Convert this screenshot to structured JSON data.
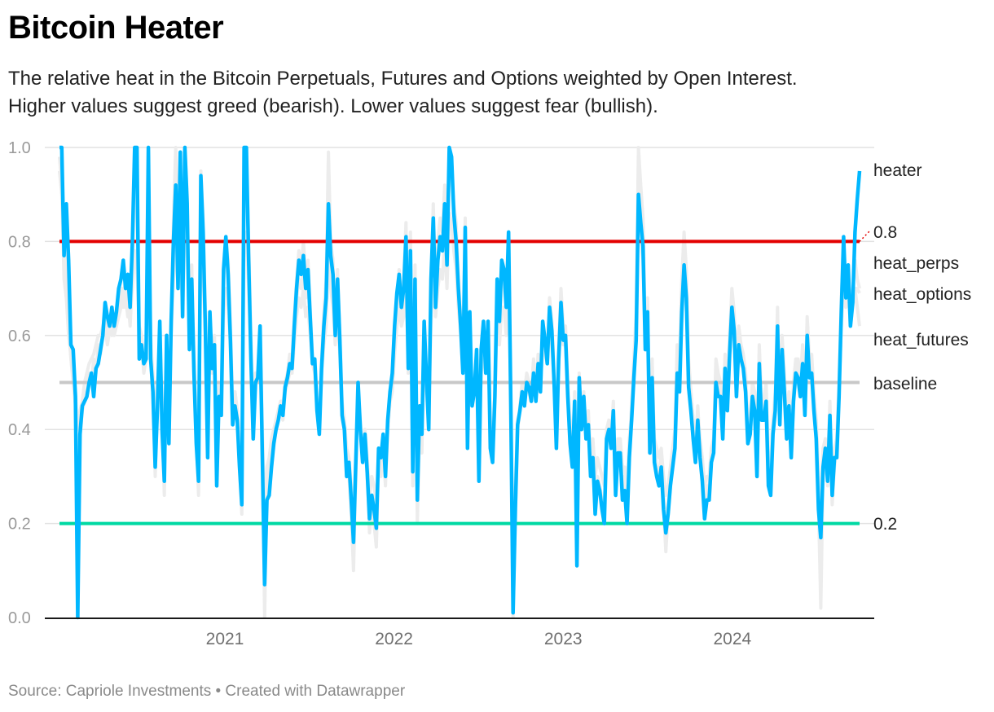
{
  "header": {
    "title": "Bitcoin Heater",
    "subtitle_line1": "The relative heat in the Bitcoin Perpetuals, Futures and Options weighted by Open Interest.",
    "subtitle_line2": "Higher values suggest greed (bearish). Lower values suggest fear (bullish)."
  },
  "footer": {
    "source": "Source: Capriole Investments • Created with Datawrapper"
  },
  "colors": {
    "heater": "#00b7ff",
    "threshold_high": "#e30000",
    "threshold_low": "#00d9a3",
    "baseline": "#c8c8c8",
    "components": "#ececec",
    "grid": "#e2e2e2"
  },
  "chart_data": {
    "type": "line",
    "title": "Bitcoin Heater",
    "xlabel": "",
    "ylabel": "",
    "xlim": [
      2020.08,
      2024.81
    ],
    "ylim": [
      0,
      1
    ],
    "grid": true,
    "y_ticks": [
      "0.0",
      "0.2",
      "0.4",
      "0.6",
      "0.8",
      "1.0"
    ],
    "y_tick_values": [
      0,
      0.2,
      0.4,
      0.6,
      0.8,
      1.0
    ],
    "x_ticks": [
      "2021",
      "2022",
      "2023",
      "2024"
    ],
    "x_tick_values": [
      2021,
      2022,
      2023,
      2024
    ],
    "legend": "right-inline",
    "reference_lines": [
      {
        "name": "0.8",
        "label": "0.8",
        "value": 0.8
      },
      {
        "name": "baseline",
        "label": "baseline",
        "value": 0.5
      },
      {
        "name": "0.2",
        "label": "0.2",
        "value": 0.2
      }
    ],
    "series_labels": {
      "heater": "heater",
      "heat_perps": "heat_perps",
      "heat_options": "heat_options",
      "heat_futures": "heat_futures"
    },
    "x_start": 2020.08,
    "x_step": 0.02,
    "heater": [
      1.0,
      1.0,
      0.77,
      0.88,
      0.76,
      0.58,
      0.57,
      0.47,
      0.0,
      0.39,
      0.45,
      0.46,
      0.47,
      0.5,
      0.52,
      0.47,
      0.53,
      0.54,
      0.57,
      0.6,
      0.67,
      0.64,
      0.62,
      0.66,
      0.62,
      0.65,
      0.7,
      0.72,
      0.76,
      0.7,
      0.73,
      0.66,
      0.8,
      1.0,
      1.0,
      0.55,
      0.58,
      0.54,
      0.55,
      1.0,
      0.55,
      0.48,
      0.32,
      0.45,
      0.63,
      0.4,
      0.29,
      0.6,
      0.37,
      0.63,
      0.8,
      0.92,
      0.7,
      0.99,
      0.64,
      1.0,
      0.88,
      0.57,
      0.72,
      0.52,
      0.37,
      0.29,
      0.94,
      0.82,
      0.61,
      0.34,
      0.65,
      0.53,
      0.58,
      0.28,
      0.47,
      0.43,
      0.74,
      0.81,
      0.73,
      0.59,
      0.41,
      0.45,
      0.42,
      0.32,
      0.24,
      1.0,
      1.0,
      0.76,
      0.55,
      0.38,
      0.5,
      0.51,
      0.62,
      0.34,
      0.07,
      0.25,
      0.26,
      0.32,
      0.37,
      0.4,
      0.42,
      0.45,
      0.43,
      0.49,
      0.51,
      0.54,
      0.53,
      0.62,
      0.7,
      0.76,
      0.73,
      0.77,
      0.7,
      0.74,
      0.64,
      0.54,
      0.55,
      0.44,
      0.39,
      0.53,
      0.62,
      0.68,
      0.88,
      0.77,
      0.73,
      0.6,
      0.72,
      0.59,
      0.43,
      0.4,
      0.3,
      0.33,
      0.25,
      0.16,
      0.33,
      0.5,
      0.4,
      0.33,
      0.39,
      0.31,
      0.21,
      0.26,
      0.23,
      0.19,
      0.36,
      0.34,
      0.39,
      0.3,
      0.42,
      0.48,
      0.52,
      0.62,
      0.69,
      0.73,
      0.66,
      0.7,
      0.81,
      0.53,
      0.78,
      0.31,
      0.72,
      0.25,
      0.45,
      0.39,
      0.63,
      0.51,
      0.4,
      0.72,
      0.85,
      0.66,
      0.76,
      0.81,
      0.78,
      0.88,
      0.75,
      1.0,
      0.98,
      0.86,
      0.8,
      0.7,
      0.62,
      0.52,
      0.83,
      0.36,
      0.65,
      0.45,
      0.48,
      0.57,
      0.29,
      0.57,
      0.63,
      0.52,
      0.63,
      0.36,
      0.33,
      0.47,
      0.72,
      0.63,
      0.76,
      0.74,
      0.66,
      0.82,
      0.46,
      0.01,
      0.23,
      0.41,
      0.44,
      0.48,
      0.45,
      0.5,
      0.49,
      0.46,
      0.52,
      0.46,
      0.54,
      0.48,
      0.63,
      0.59,
      0.54,
      0.66,
      0.61,
      0.5,
      0.36,
      0.55,
      0.67,
      0.59,
      0.6,
      0.47,
      0.37,
      0.32,
      0.46,
      0.11,
      0.51,
      0.4,
      0.47,
      0.38,
      0.41,
      0.3,
      0.34,
      0.22,
      0.29,
      0.27,
      0.23,
      0.2,
      0.38,
      0.4,
      0.36,
      0.44,
      0.26,
      0.35,
      0.35,
      0.25,
      0.27,
      0.2,
      0.34,
      0.42,
      0.51,
      0.59,
      0.9,
      0.84,
      0.79,
      0.57,
      0.65,
      0.35,
      0.51,
      0.33,
      0.3,
      0.28,
      0.32,
      0.23,
      0.18,
      0.22,
      0.28,
      0.32,
      0.36,
      0.52,
      0.48,
      0.65,
      0.75,
      0.68,
      0.49,
      0.44,
      0.38,
      0.33,
      0.42,
      0.34,
      0.29,
      0.21,
      0.25,
      0.25,
      0.33,
      0.35,
      0.5,
      0.47,
      0.47,
      0.38,
      0.53,
      0.44,
      0.56,
      0.66,
      0.61,
      0.47,
      0.58,
      0.55,
      0.53,
      0.48,
      0.37,
      0.39,
      0.47,
      0.44,
      0.3,
      0.54,
      0.42,
      0.42,
      0.46,
      0.28,
      0.26,
      0.39,
      0.44,
      0.62,
      0.41,
      0.57,
      0.48,
      0.38,
      0.45,
      0.34,
      0.46,
      0.52,
      0.51,
      0.47,
      0.54,
      0.43,
      0.6,
      0.51,
      0.52,
      0.44,
      0.38,
      0.23,
      0.17,
      0.32,
      0.36,
      0.29,
      0.43,
      0.26,
      0.34,
      0.34,
      0.47,
      0.65,
      0.81,
      0.68,
      0.75,
      0.62,
      0.67,
      0.82,
      0.89,
      0.95
    ],
    "heat_perps": [
      0.98,
      0.95,
      0.8,
      0.72,
      0.62,
      0.55,
      0.5,
      0.45,
      0.3,
      0.4,
      0.44,
      0.48,
      0.47,
      0.52,
      0.5,
      0.55,
      0.52,
      0.58,
      0.56,
      0.6,
      0.62,
      0.58,
      0.61,
      0.6,
      0.64,
      0.62,
      0.66,
      0.7,
      0.68,
      0.72,
      0.64,
      0.7,
      0.78,
      0.9,
      0.85,
      0.6,
      0.58,
      0.52,
      0.55,
      0.88,
      0.6,
      0.5,
      0.38,
      0.48,
      0.6,
      0.45,
      0.35,
      0.58,
      0.42,
      0.62,
      0.85,
      1.0,
      0.78,
      0.95,
      0.68,
      1.0,
      0.9,
      0.62,
      0.75,
      0.55,
      0.42,
      0.3,
      0.95,
      0.85,
      0.65,
      0.4,
      0.62,
      0.55,
      0.6,
      0.32,
      0.5,
      0.46,
      0.7,
      0.8,
      0.76,
      0.62,
      0.45,
      0.48,
      0.44,
      0.35,
      0.28,
      0.95,
      0.98,
      0.8,
      0.6,
      0.42,
      0.52,
      0.52,
      0.6,
      0.38,
      0.0,
      0.28,
      0.3,
      0.35,
      0.38,
      0.42,
      0.44,
      0.46,
      0.45,
      0.5,
      0.52,
      0.56,
      0.55,
      0.64,
      0.72,
      0.78,
      0.74,
      0.8,
      0.72,
      0.76,
      0.66,
      0.56,
      0.52,
      0.46,
      0.41,
      0.55,
      0.65,
      0.72,
      0.99,
      0.8,
      0.76,
      0.62,
      0.74,
      0.6,
      0.45,
      0.42,
      0.32,
      0.3,
      0.22,
      0.1,
      0.3,
      0.48,
      0.42,
      0.35,
      0.4,
      0.32,
      0.18,
      0.24,
      0.2,
      0.15,
      0.33,
      0.3,
      0.36,
      0.28,
      0.4,
      0.46,
      0.5,
      0.6,
      0.68,
      0.74,
      0.68,
      0.72,
      0.84,
      0.55,
      0.82,
      0.28,
      0.75,
      0.2,
      0.4,
      0.35,
      0.6,
      0.48,
      0.42,
      0.7,
      0.88,
      0.7,
      0.8,
      0.85,
      0.82,
      0.92,
      0.78,
      0.96,
      0.94,
      0.88,
      0.84,
      0.72,
      0.64,
      0.55,
      0.85,
      0.4,
      0.62,
      0.48,
      0.5,
      0.55,
      0.32,
      0.55,
      0.6,
      0.55,
      0.62,
      0.4,
      0.35,
      0.48,
      0.7,
      0.62,
      0.74,
      0.72,
      0.65,
      0.8,
      0.48,
      0.0,
      0.2,
      0.4,
      0.45,
      0.5,
      0.48,
      0.52,
      0.5,
      0.48,
      0.55,
      0.48,
      0.56,
      0.5,
      0.62,
      0.6,
      0.56,
      0.68,
      0.63,
      0.52,
      0.4,
      0.58,
      0.7,
      0.62,
      0.62,
      0.5,
      0.4,
      0.35,
      0.48,
      0.15,
      0.52,
      0.42,
      0.48,
      0.4,
      0.44,
      0.33,
      0.36,
      0.25,
      0.3,
      0.28,
      0.25,
      0.22,
      0.4,
      0.42,
      0.38,
      0.46,
      0.28,
      0.36,
      0.38,
      0.28,
      0.3,
      0.22,
      0.36,
      0.45,
      0.55,
      0.65,
      1.0,
      0.92,
      0.85,
      0.62,
      0.68,
      0.4,
      0.55,
      0.36,
      0.32,
      0.3,
      0.35,
      0.26,
      0.2,
      0.24,
      0.3,
      0.35,
      0.4,
      0.58,
      0.55,
      0.72,
      0.82,
      0.74,
      0.55,
      0.48,
      0.42,
      0.36,
      0.45,
      0.36,
      0.32,
      0.24,
      0.28,
      0.28,
      0.36,
      0.38,
      0.55,
      0.52,
      0.5,
      0.42,
      0.56,
      0.48,
      0.6,
      0.7,
      0.65,
      0.52,
      0.62,
      0.58,
      0.56,
      0.52,
      0.4,
      0.42,
      0.5,
      0.48,
      0.34,
      0.58,
      0.46,
      0.46,
      0.5,
      0.32,
      0.3,
      0.42,
      0.48,
      0.66,
      0.45,
      0.6,
      0.52,
      0.42,
      0.48,
      0.38,
      0.5,
      0.55,
      0.55,
      0.5,
      0.58,
      0.46,
      0.64,
      0.55,
      0.56,
      0.48,
      0.42,
      0.26,
      0.2,
      0.35,
      0.38,
      0.32,
      0.46,
      0.28,
      0.36,
      0.38,
      0.5,
      0.68,
      0.78,
      0.72,
      0.72,
      0.66,
      0.7,
      0.76,
      0.72,
      0.7
    ],
    "heat_options": [
      0.95,
      0.9,
      0.72,
      0.68,
      0.6,
      0.56,
      0.52,
      0.48,
      0.4,
      0.44,
      0.46,
      0.5,
      0.52,
      0.54,
      0.55,
      0.56,
      0.58,
      0.6,
      0.6,
      0.62,
      0.64,
      0.62,
      0.63,
      0.64,
      0.62,
      0.64,
      0.66,
      0.68,
      0.66,
      0.68,
      0.64,
      0.66,
      0.7,
      0.78,
      0.74,
      0.62,
      0.6,
      0.56,
      0.58,
      0.74,
      0.58,
      0.52,
      0.42,
      0.5,
      0.58,
      0.46,
      0.38,
      0.56,
      0.44,
      0.6,
      0.72,
      0.8,
      0.7,
      0.82,
      0.64,
      0.86,
      0.78,
      0.6,
      0.68,
      0.54,
      0.44,
      0.36,
      0.8,
      0.74,
      0.6,
      0.42,
      0.58,
      0.52,
      0.56,
      0.36,
      0.48,
      0.46,
      0.64,
      0.7,
      0.66,
      0.58,
      0.46,
      0.48,
      0.44,
      0.38,
      0.32,
      0.8,
      0.82,
      0.7,
      0.56,
      0.44,
      0.5,
      0.5,
      0.56,
      0.4,
      0.2,
      0.32,
      0.34,
      0.38,
      0.4,
      0.42,
      0.44,
      0.46,
      0.46,
      0.48,
      0.5,
      0.52,
      0.52,
      0.58,
      0.64,
      0.68,
      0.66,
      0.7,
      0.64,
      0.66,
      0.6,
      0.54,
      0.52,
      0.46,
      0.44,
      0.52,
      0.58,
      0.62,
      0.8,
      0.7,
      0.66,
      0.58,
      0.64,
      0.56,
      0.46,
      0.42,
      0.36,
      0.34,
      0.28,
      0.22,
      0.34,
      0.46,
      0.4,
      0.36,
      0.4,
      0.34,
      0.26,
      0.3,
      0.28,
      0.24,
      0.36,
      0.34,
      0.38,
      0.32,
      0.4,
      0.46,
      0.48,
      0.56,
      0.62,
      0.66,
      0.62,
      0.64,
      0.72,
      0.52,
      0.7,
      0.34,
      0.64,
      0.3,
      0.44,
      0.4,
      0.56,
      0.48,
      0.44,
      0.62,
      0.76,
      0.64,
      0.7,
      0.74,
      0.72,
      0.8,
      0.7,
      0.86,
      0.84,
      0.78,
      0.74,
      0.66,
      0.6,
      0.52,
      0.72,
      0.42,
      0.58,
      0.46,
      0.48,
      0.54,
      0.36,
      0.52,
      0.56,
      0.52,
      0.58,
      0.4,
      0.38,
      0.48,
      0.64,
      0.58,
      0.66,
      0.66,
      0.6,
      0.72,
      0.46,
      0.1,
      0.28,
      0.42,
      0.44,
      0.48,
      0.46,
      0.5,
      0.48,
      0.46,
      0.52,
      0.48,
      0.52,
      0.48,
      0.58,
      0.56,
      0.54,
      0.62,
      0.58,
      0.5,
      0.42,
      0.54,
      0.62,
      0.58,
      0.58,
      0.48,
      0.42,
      0.38,
      0.46,
      0.24,
      0.48,
      0.42,
      0.46,
      0.4,
      0.42,
      0.36,
      0.38,
      0.3,
      0.34,
      0.32,
      0.3,
      0.28,
      0.4,
      0.4,
      0.38,
      0.44,
      0.32,
      0.38,
      0.38,
      0.32,
      0.32,
      0.28,
      0.38,
      0.44,
      0.52,
      0.6,
      0.84,
      0.8,
      0.76,
      0.6,
      0.64,
      0.42,
      0.52,
      0.38,
      0.36,
      0.34,
      0.36,
      0.3,
      0.26,
      0.28,
      0.32,
      0.36,
      0.4,
      0.54,
      0.52,
      0.64,
      0.72,
      0.66,
      0.52,
      0.48,
      0.42,
      0.38,
      0.44,
      0.38,
      0.34,
      0.28,
      0.3,
      0.3,
      0.36,
      0.38,
      0.5,
      0.48,
      0.48,
      0.42,
      0.52,
      0.46,
      0.56,
      0.62,
      0.6,
      0.5,
      0.58,
      0.56,
      0.54,
      0.5,
      0.42,
      0.42,
      0.48,
      0.46,
      0.36,
      0.54,
      0.44,
      0.44,
      0.48,
      0.34,
      0.32,
      0.42,
      0.46,
      0.6,
      0.44,
      0.56,
      0.5,
      0.42,
      0.46,
      0.4,
      0.48,
      0.52,
      0.52,
      0.48,
      0.54,
      0.46,
      0.58,
      0.52,
      0.52,
      0.46,
      0.42,
      0.3,
      0.24,
      0.36,
      0.38,
      0.34,
      0.44,
      0.3,
      0.36,
      0.38,
      0.48,
      0.62,
      0.7,
      0.66,
      0.68,
      0.64,
      0.68,
      0.7,
      0.7,
      0.69
    ],
    "heat_futures": [
      0.98,
      0.92,
      0.74,
      0.8,
      0.7,
      0.58,
      0.54,
      0.46,
      0.1,
      0.38,
      0.44,
      0.46,
      0.48,
      0.5,
      0.52,
      0.48,
      0.54,
      0.55,
      0.58,
      0.6,
      0.62,
      0.6,
      0.62,
      0.64,
      0.6,
      0.62,
      0.64,
      0.66,
      0.7,
      0.66,
      0.68,
      0.62,
      0.72,
      0.96,
      0.92,
      0.58,
      0.6,
      0.56,
      0.58,
      0.94,
      0.58,
      0.48,
      0.3,
      0.46,
      0.62,
      0.42,
      0.26,
      0.6,
      0.4,
      0.62,
      0.78,
      0.94,
      0.72,
      0.96,
      0.66,
      0.98,
      0.86,
      0.58,
      0.7,
      0.52,
      0.38,
      0.26,
      0.92,
      0.8,
      0.62,
      0.36,
      0.62,
      0.54,
      0.58,
      0.3,
      0.48,
      0.44,
      0.72,
      0.78,
      0.72,
      0.6,
      0.42,
      0.46,
      0.42,
      0.32,
      0.22,
      0.98,
      0.96,
      0.78,
      0.56,
      0.4,
      0.5,
      0.5,
      0.6,
      0.36,
      0.04,
      0.26,
      0.28,
      0.32,
      0.36,
      0.4,
      0.42,
      0.44,
      0.42,
      0.48,
      0.5,
      0.52,
      0.52,
      0.6,
      0.68,
      0.72,
      0.7,
      0.74,
      0.68,
      0.72,
      0.62,
      0.54,
      0.52,
      0.44,
      0.4,
      0.52,
      0.6,
      0.66,
      0.92,
      0.76,
      0.72,
      0.6,
      0.7,
      0.58,
      0.42,
      0.4,
      0.3,
      0.3,
      0.24,
      0.14,
      0.32,
      0.48,
      0.4,
      0.34,
      0.38,
      0.3,
      0.2,
      0.24,
      0.22,
      0.18,
      0.34,
      0.32,
      0.38,
      0.3,
      0.4,
      0.46,
      0.5,
      0.6,
      0.66,
      0.7,
      0.64,
      0.68,
      0.8,
      0.52,
      0.78,
      0.3,
      0.7,
      0.24,
      0.42,
      0.38,
      0.6,
      0.48,
      0.42,
      0.7,
      0.84,
      0.66,
      0.76,
      0.8,
      0.78,
      0.9,
      0.76,
      0.98,
      0.96,
      0.86,
      0.8,
      0.7,
      0.62,
      0.52,
      0.82,
      0.38,
      0.62,
      0.46,
      0.48,
      0.56,
      0.3,
      0.54,
      0.6,
      0.52,
      0.6,
      0.38,
      0.34,
      0.46,
      0.7,
      0.6,
      0.72,
      0.72,
      0.64,
      0.8,
      0.46,
      0.02,
      0.22,
      0.4,
      0.44,
      0.48,
      0.46,
      0.5,
      0.48,
      0.46,
      0.52,
      0.46,
      0.54,
      0.48,
      0.62,
      0.58,
      0.54,
      0.66,
      0.6,
      0.5,
      0.38,
      0.56,
      0.66,
      0.6,
      0.6,
      0.48,
      0.38,
      0.34,
      0.46,
      0.12,
      0.5,
      0.4,
      0.46,
      0.38,
      0.42,
      0.32,
      0.34,
      0.24,
      0.3,
      0.28,
      0.24,
      0.22,
      0.38,
      0.4,
      0.36,
      0.44,
      0.28,
      0.36,
      0.36,
      0.26,
      0.28,
      0.22,
      0.34,
      0.42,
      0.52,
      0.6,
      0.94,
      0.88,
      0.82,
      0.6,
      0.66,
      0.38,
      0.52,
      0.34,
      0.32,
      0.3,
      0.34,
      0.24,
      0.14,
      0.22,
      0.28,
      0.32,
      0.38,
      0.54,
      0.5,
      0.68,
      0.78,
      0.7,
      0.52,
      0.46,
      0.4,
      0.34,
      0.44,
      0.36,
      0.3,
      0.22,
      0.26,
      0.26,
      0.34,
      0.36,
      0.52,
      0.48,
      0.48,
      0.4,
      0.54,
      0.46,
      0.58,
      0.68,
      0.62,
      0.5,
      0.6,
      0.56,
      0.54,
      0.5,
      0.38,
      0.4,
      0.48,
      0.46,
      0.32,
      0.56,
      0.44,
      0.44,
      0.48,
      0.3,
      0.28,
      0.4,
      0.46,
      0.64,
      0.42,
      0.58,
      0.5,
      0.4,
      0.46,
      0.36,
      0.48,
      0.54,
      0.52,
      0.48,
      0.56,
      0.44,
      0.62,
      0.52,
      0.54,
      0.46,
      0.4,
      0.24,
      0.02,
      0.3,
      0.34,
      0.28,
      0.42,
      0.24,
      0.32,
      0.36,
      0.48,
      0.62,
      0.74,
      0.66,
      0.7,
      0.62,
      0.66,
      0.7,
      0.66,
      0.62
    ]
  }
}
